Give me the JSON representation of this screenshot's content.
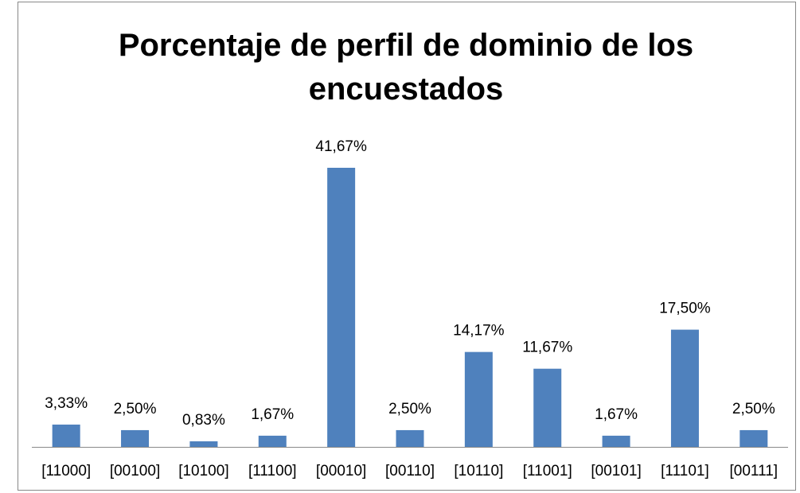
{
  "chart_data": {
    "type": "bar",
    "title": "Porcentaje de perfil de dominio de los encuestados",
    "categories": [
      "[11000]",
      "[00100]",
      "[10100]",
      "[11100]",
      "[00010]",
      "[00110]",
      "[10110]",
      "[11001]",
      "[00101]",
      "[11101]",
      "[00111]"
    ],
    "values": [
      3.33,
      2.5,
      0.83,
      1.67,
      41.67,
      2.5,
      14.17,
      11.67,
      1.67,
      17.5,
      2.5
    ],
    "value_labels": [
      "3,33%",
      "2,50%",
      "0,83%",
      "1,67%",
      "41,67%",
      "2,50%",
      "14,17%",
      "11,67%",
      "1,67%",
      "17,50%",
      "2,50%"
    ],
    "color": "#4f81bd"
  }
}
